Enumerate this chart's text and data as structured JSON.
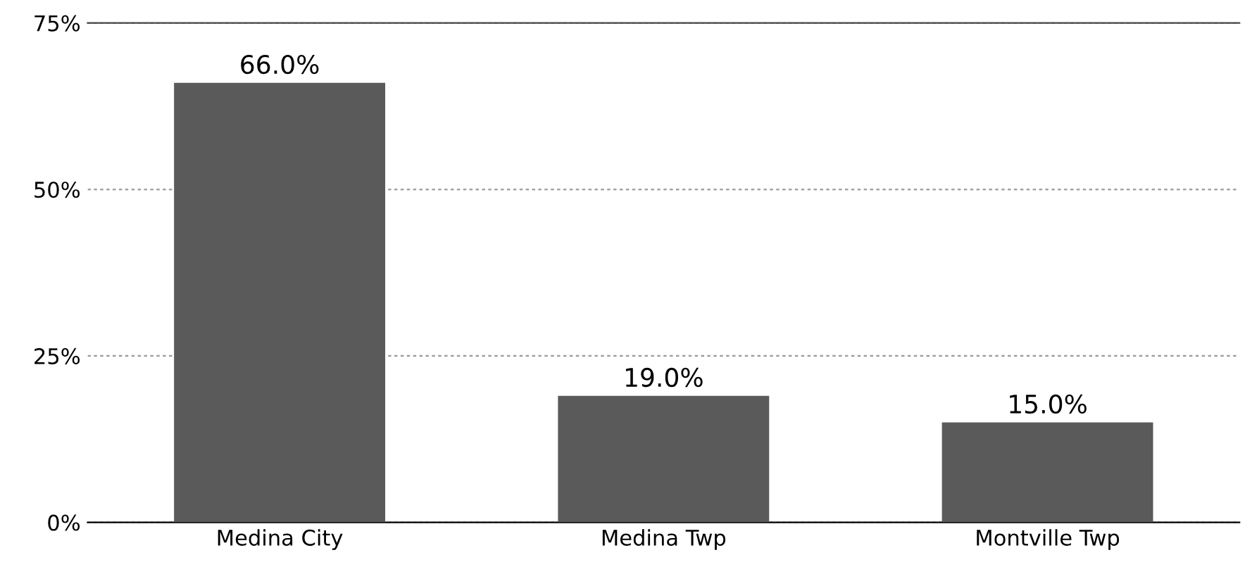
{
  "chart_data": {
    "type": "bar",
    "categories": [
      "Medina City",
      "Medina Twp",
      "Montville Twp"
    ],
    "values": [
      66.0,
      19.0,
      15.0
    ],
    "color": "#5a5a5a",
    "value_labels": [
      "66.0%",
      "19.0%",
      "15.0%"
    ],
    "ylim": [
      0,
      75
    ],
    "yticks": [
      {
        "value": 0,
        "label": "0%"
      },
      {
        "value": 25,
        "label": "25%"
      },
      {
        "value": 50,
        "label": "50%"
      },
      {
        "value": 75,
        "label": "75%"
      }
    ],
    "grid": "y"
  }
}
